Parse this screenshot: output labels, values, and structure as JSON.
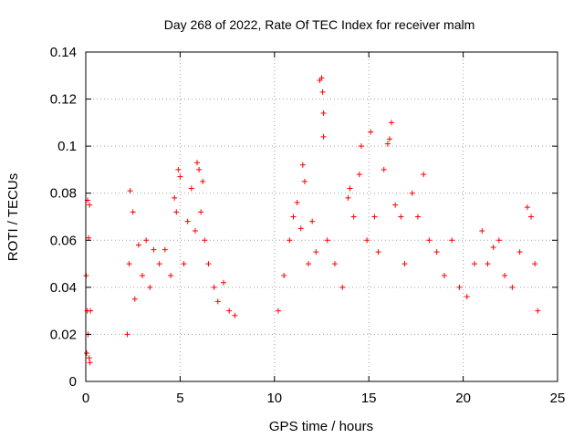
{
  "chart_data": {
    "type": "scatter",
    "title": "Day 268 of 2022, Rate Of TEC Index for receiver malm",
    "xlabel": "GPS time / hours",
    "ylabel": "ROTI / TECUs",
    "xlim": [
      0,
      25
    ],
    "ylim": [
      0,
      0.14
    ],
    "xticks": [
      0,
      5,
      10,
      15,
      20,
      25
    ],
    "xtick_labels": [
      "0",
      "5",
      "10",
      "15",
      "20",
      "25"
    ],
    "yticks": [
      0,
      0.02,
      0.04,
      0.06,
      0.08,
      0.1,
      0.12,
      0.14
    ],
    "ytick_labels": [
      "0",
      "0.02",
      "0.04",
      "0.06",
      "0.08",
      "0.1",
      "0.12",
      "0.14"
    ],
    "grid": true,
    "marker": "+",
    "color": "#ff0000",
    "series": [
      {
        "values": [
          [
            0.02,
            0.045
          ],
          [
            0.05,
            0.012
          ],
          [
            0.08,
            0.03
          ],
          [
            0.1,
            0.077
          ],
          [
            0.12,
            0.02
          ],
          [
            0.15,
            0.061
          ],
          [
            0.18,
            0.01
          ],
          [
            0.2,
            0.075
          ],
          [
            0.22,
            0.008
          ],
          [
            0.25,
            0.03
          ],
          [
            2.2,
            0.02
          ],
          [
            2.3,
            0.05
          ],
          [
            2.35,
            0.081
          ],
          [
            2.5,
            0.072
          ],
          [
            2.6,
            0.035
          ],
          [
            2.8,
            0.058
          ],
          [
            3.0,
            0.045
          ],
          [
            3.2,
            0.06
          ],
          [
            3.4,
            0.04
          ],
          [
            3.6,
            0.056
          ],
          [
            3.9,
            0.05
          ],
          [
            4.2,
            0.056
          ],
          [
            4.5,
            0.045
          ],
          [
            4.7,
            0.078
          ],
          [
            4.8,
            0.072
          ],
          [
            4.9,
            0.09
          ],
          [
            5.0,
            0.087
          ],
          [
            5.2,
            0.05
          ],
          [
            5.4,
            0.068
          ],
          [
            5.6,
            0.082
          ],
          [
            5.8,
            0.064
          ],
          [
            5.9,
            0.093
          ],
          [
            6.0,
            0.09
          ],
          [
            6.1,
            0.072
          ],
          [
            6.2,
            0.085
          ],
          [
            6.3,
            0.06
          ],
          [
            6.5,
            0.05
          ],
          [
            6.8,
            0.04
          ],
          [
            7.0,
            0.034
          ],
          [
            7.3,
            0.042
          ],
          [
            7.6,
            0.03
          ],
          [
            7.9,
            0.028
          ],
          [
            10.2,
            0.03
          ],
          [
            10.5,
            0.045
          ],
          [
            10.8,
            0.06
          ],
          [
            11.0,
            0.07
          ],
          [
            11.2,
            0.076
          ],
          [
            11.4,
            0.065
          ],
          [
            11.5,
            0.092
          ],
          [
            11.6,
            0.085
          ],
          [
            11.8,
            0.05
          ],
          [
            12.0,
            0.068
          ],
          [
            12.2,
            0.055
          ],
          [
            12.4,
            0.128
          ],
          [
            12.5,
            0.129
          ],
          [
            12.55,
            0.123
          ],
          [
            12.6,
            0.114
          ],
          [
            12.6,
            0.104
          ],
          [
            12.8,
            0.06
          ],
          [
            13.2,
            0.05
          ],
          [
            13.6,
            0.04
          ],
          [
            13.9,
            0.078
          ],
          [
            14.0,
            0.082
          ],
          [
            14.2,
            0.07
          ],
          [
            14.5,
            0.088
          ],
          [
            14.6,
            0.1
          ],
          [
            14.9,
            0.06
          ],
          [
            15.1,
            0.106
          ],
          [
            15.3,
            0.07
          ],
          [
            15.5,
            0.055
          ],
          [
            15.8,
            0.09
          ],
          [
            16.0,
            0.101
          ],
          [
            16.1,
            0.103
          ],
          [
            16.2,
            0.11
          ],
          [
            16.4,
            0.075
          ],
          [
            16.7,
            0.07
          ],
          [
            16.9,
            0.05
          ],
          [
            17.3,
            0.08
          ],
          [
            17.6,
            0.07
          ],
          [
            17.9,
            0.088
          ],
          [
            18.2,
            0.06
          ],
          [
            18.6,
            0.055
          ],
          [
            19.0,
            0.045
          ],
          [
            19.4,
            0.06
          ],
          [
            19.8,
            0.04
          ],
          [
            20.2,
            0.036
          ],
          [
            20.6,
            0.05
          ],
          [
            21.0,
            0.064
          ],
          [
            21.3,
            0.05
          ],
          [
            21.6,
            0.057
          ],
          [
            21.9,
            0.06
          ],
          [
            22.2,
            0.045
          ],
          [
            22.6,
            0.04
          ],
          [
            23.0,
            0.055
          ],
          [
            23.4,
            0.074
          ],
          [
            23.6,
            0.07
          ],
          [
            23.8,
            0.05
          ],
          [
            23.95,
            0.03
          ]
        ]
      }
    ]
  }
}
